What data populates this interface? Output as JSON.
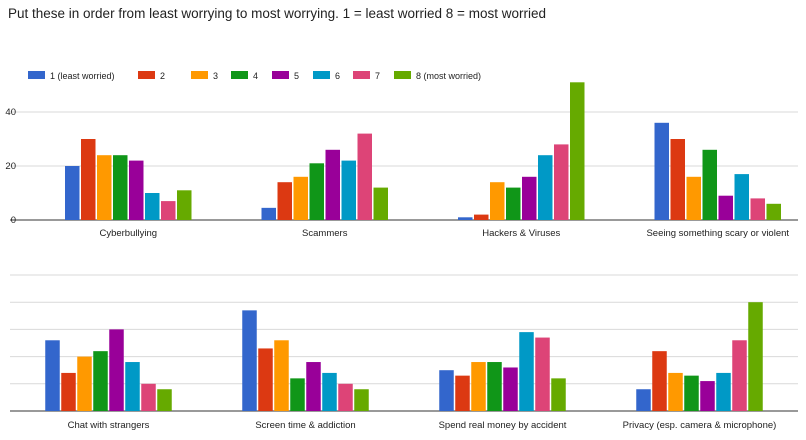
{
  "title": "Put these in order from least worrying to most worrying. 1 = least worried 8 = most worried",
  "colors": [
    "#3366cc",
    "#dc3912",
    "#ff9900",
    "#109618",
    "#990099",
    "#0099c6",
    "#dd4477",
    "#66aa00"
  ],
  "chart_data": [
    {
      "type": "bar",
      "categories": [
        "Cyberbullying",
        "Scammers",
        "Hackers & Viruses",
        "Seeing something scary or violent"
      ],
      "series": [
        {
          "name": "1 (least worried)",
          "values": [
            20,
            4.5,
            1,
            36
          ]
        },
        {
          "name": "2",
          "values": [
            30,
            14,
            2,
            30
          ]
        },
        {
          "name": "3",
          "values": [
            24,
            16,
            14,
            16
          ]
        },
        {
          "name": "4",
          "values": [
            24,
            21,
            12,
            26
          ]
        },
        {
          "name": "5",
          "values": [
            22,
            26,
            16,
            9
          ]
        },
        {
          "name": "6",
          "values": [
            10,
            22,
            24,
            17
          ]
        },
        {
          "name": "7",
          "values": [
            7,
            32,
            28,
            8
          ]
        },
        {
          "name": "8 (most worried)",
          "values": [
            11,
            12,
            51,
            6
          ]
        }
      ],
      "yticks": [
        0,
        20,
        40
      ],
      "ylim": [
        0,
        50
      ],
      "legend": "top",
      "grid": true
    },
    {
      "type": "bar",
      "categories": [
        "Chat with strangers",
        "Screen time & addiction",
        "Spend real money by accident",
        "Privacy (esp. camera & microphone)"
      ],
      "series": [
        {
          "name": "1 (least worried)",
          "values": [
            26,
            37,
            15,
            8
          ]
        },
        {
          "name": "2",
          "values": [
            14,
            23,
            13,
            22
          ]
        },
        {
          "name": "3",
          "values": [
            20,
            26,
            18,
            14
          ]
        },
        {
          "name": "4",
          "values": [
            22,
            12,
            18,
            13
          ]
        },
        {
          "name": "5",
          "values": [
            30,
            18,
            16,
            11
          ]
        },
        {
          "name": "6",
          "values": [
            18,
            14,
            29,
            14
          ]
        },
        {
          "name": "7",
          "values": [
            10,
            10,
            27,
            26
          ]
        },
        {
          "name": "8 (most worried)",
          "values": [
            8,
            8,
            12,
            40
          ]
        }
      ],
      "ylim": [
        0,
        50
      ],
      "grid": true
    }
  ]
}
